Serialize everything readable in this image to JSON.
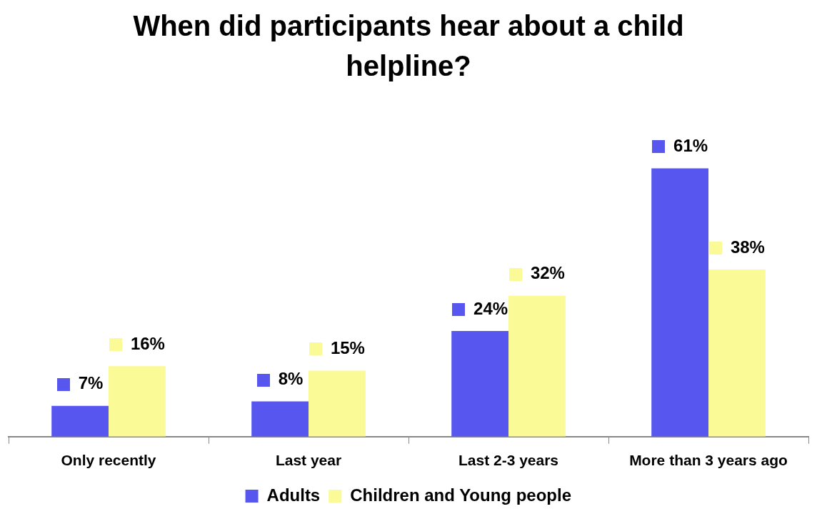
{
  "chart_data": {
    "type": "bar",
    "title": "When did participants hear about a child helpline?",
    "categories": [
      "Only recently",
      "Last year",
      "Last 2-3 years",
      "More than 3 years ago"
    ],
    "series": [
      {
        "name": "Adults",
        "color": "#5757f0",
        "values": [
          7,
          8,
          24,
          61
        ],
        "value_labels": [
          "7%",
          "8%",
          "24%",
          "61%"
        ]
      },
      {
        "name": "Children and Young people",
        "color": "#fafa96",
        "values": [
          16,
          15,
          32,
          38
        ],
        "value_labels": [
          "16%",
          "15%",
          "32%",
          "38%"
        ]
      }
    ],
    "legend": "bottom",
    "grid": false
  }
}
